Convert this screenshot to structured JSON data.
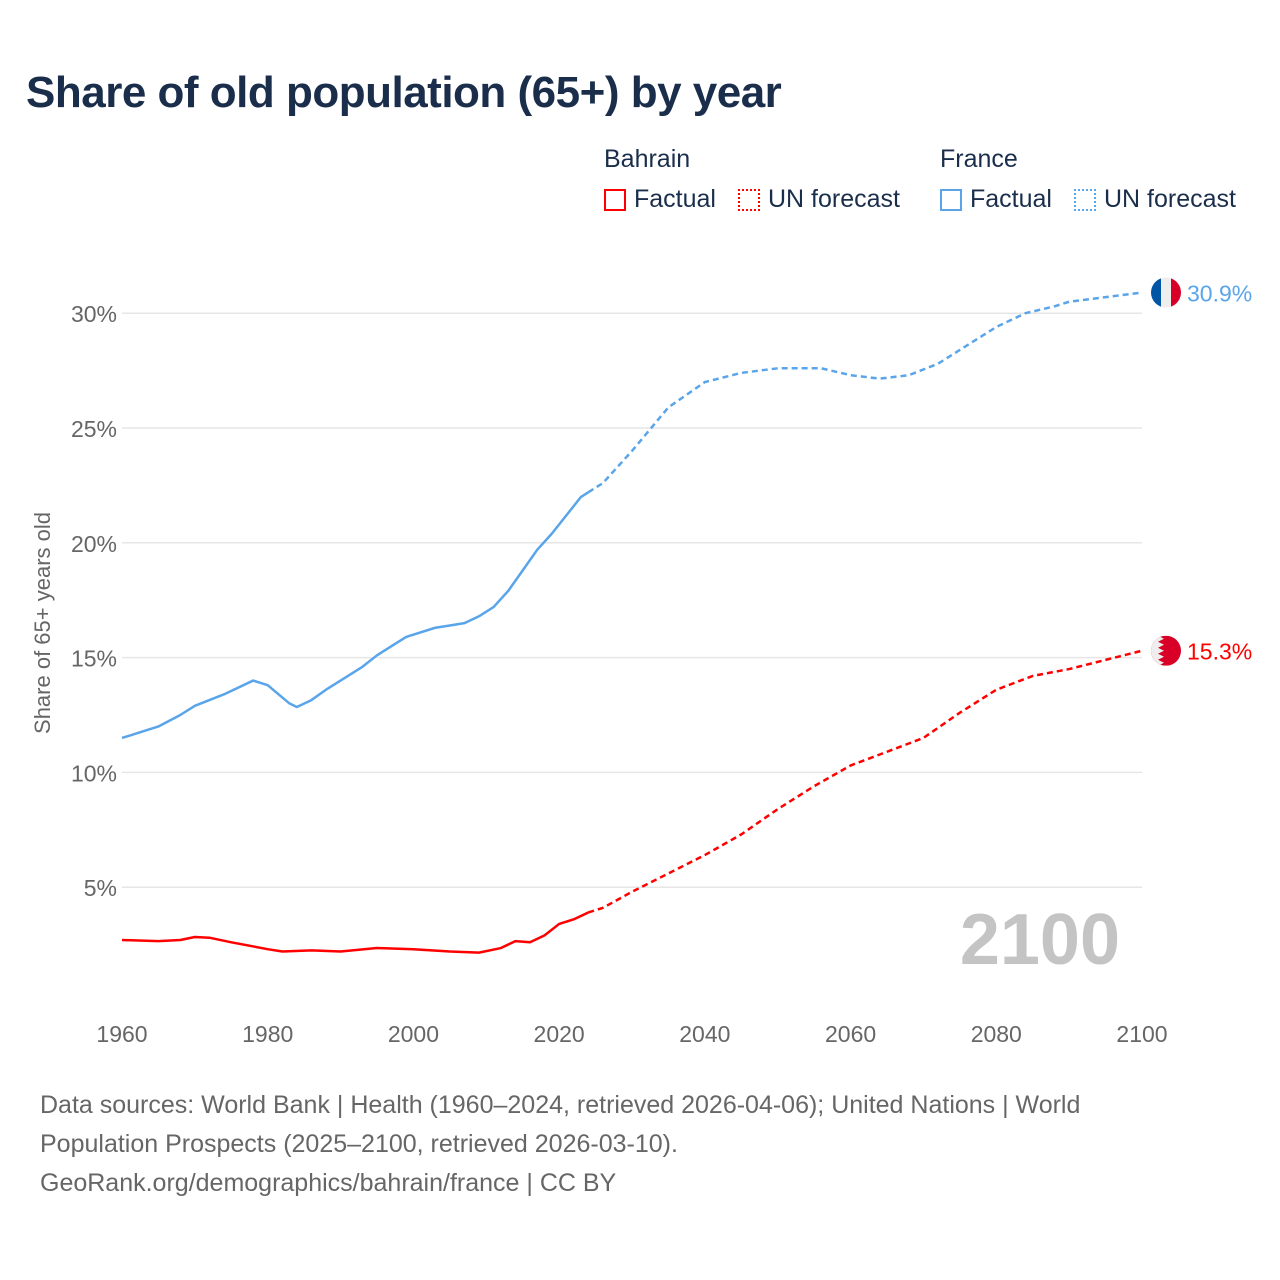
{
  "title": "Share of old population (65+) by year",
  "legend": {
    "groups": [
      {
        "country": "Bahrain",
        "color": "#ff0000",
        "items": [
          "Factual",
          "UN forecast"
        ]
      },
      {
        "country": "France",
        "color": "#5aa5ea",
        "items": [
          "Factual",
          "UN forecast"
        ]
      }
    ]
  },
  "year_watermark": "2100",
  "end_labels": {
    "france": "30.9%",
    "bahrain": "15.3%"
  },
  "flags": {
    "france": "france-flag-icon",
    "bahrain": "bahrain-flag-icon"
  },
  "footer": {
    "line1": "Data sources: World Bank | Health (1960–2024, retrieved 2026-04-06); United Nations | World Population Prospects (2025–2100, retrieved 2026-03-10).",
    "line2": "GeoRank.org/demographics/bahrain/france | CC BY"
  },
  "chart_data": {
    "type": "line",
    "title": "Share of old population (65+) by year",
    "xlabel": "",
    "ylabel": "Share of 65+ years old",
    "xlim": [
      1960,
      2100
    ],
    "ylim": [
      0,
      32
    ],
    "x_ticks": [
      "1960",
      "1980",
      "2000",
      "2020",
      "2040",
      "2060",
      "2080",
      "2100"
    ],
    "y_ticks": [
      "5%",
      "10%",
      "15%",
      "20%",
      "25%",
      "30%"
    ],
    "y_tick_values": [
      5,
      10,
      15,
      20,
      25,
      30
    ],
    "grid": true,
    "legend_position": "top-right",
    "series": [
      {
        "name": "France",
        "color": "#5aa5ea",
        "factual": {
          "x": [
            1960,
            1965,
            1968,
            1970,
            1974,
            1978,
            1980,
            1983,
            1984,
            1986,
            1988,
            1990,
            1993,
            1995,
            1999,
            2003,
            2005,
            2007,
            2009,
            2011,
            2013,
            2015,
            2017,
            2019,
            2021,
            2023,
            2024
          ],
          "y": [
            11.5,
            12.0,
            12.5,
            12.9,
            13.4,
            14.0,
            13.8,
            13.0,
            12.85,
            13.15,
            13.6,
            14.0,
            14.6,
            15.1,
            15.9,
            16.3,
            16.4,
            16.5,
            16.8,
            17.2,
            17.9,
            18.8,
            19.7,
            20.4,
            21.2,
            22.0,
            22.2
          ]
        },
        "forecast": {
          "x": [
            2024,
            2026,
            2030,
            2035,
            2040,
            2045,
            2050,
            2056,
            2060,
            2064,
            2068,
            2072,
            2076,
            2080,
            2084,
            2088,
            2090,
            2095,
            2100
          ],
          "y": [
            22.2,
            22.6,
            24.0,
            25.9,
            27.0,
            27.4,
            27.6,
            27.6,
            27.3,
            27.15,
            27.3,
            27.8,
            28.6,
            29.4,
            30.0,
            30.3,
            30.5,
            30.7,
            30.9
          ]
        }
      },
      {
        "name": "Bahrain",
        "color": "#ff0000",
        "factual": {
          "x": [
            1960,
            1965,
            1968,
            1970,
            1972,
            1975,
            1980,
            1982,
            1986,
            1990,
            1995,
            2000,
            2005,
            2009,
            2012,
            2014,
            2016,
            2018,
            2020,
            2022,
            2024
          ],
          "y": [
            2.7,
            2.65,
            2.7,
            2.83,
            2.8,
            2.6,
            2.3,
            2.2,
            2.25,
            2.2,
            2.35,
            2.3,
            2.2,
            2.15,
            2.35,
            2.65,
            2.6,
            2.9,
            3.4,
            3.6,
            3.9
          ]
        },
        "forecast": {
          "x": [
            2024,
            2026,
            2030,
            2035,
            2040,
            2045,
            2050,
            2055,
            2060,
            2065,
            2070,
            2075,
            2080,
            2085,
            2090,
            2095,
            2100
          ],
          "y": [
            3.9,
            4.1,
            4.8,
            5.6,
            6.4,
            7.3,
            8.4,
            9.4,
            10.3,
            10.9,
            11.5,
            12.6,
            13.6,
            14.2,
            14.5,
            14.9,
            15.3
          ]
        }
      }
    ]
  }
}
